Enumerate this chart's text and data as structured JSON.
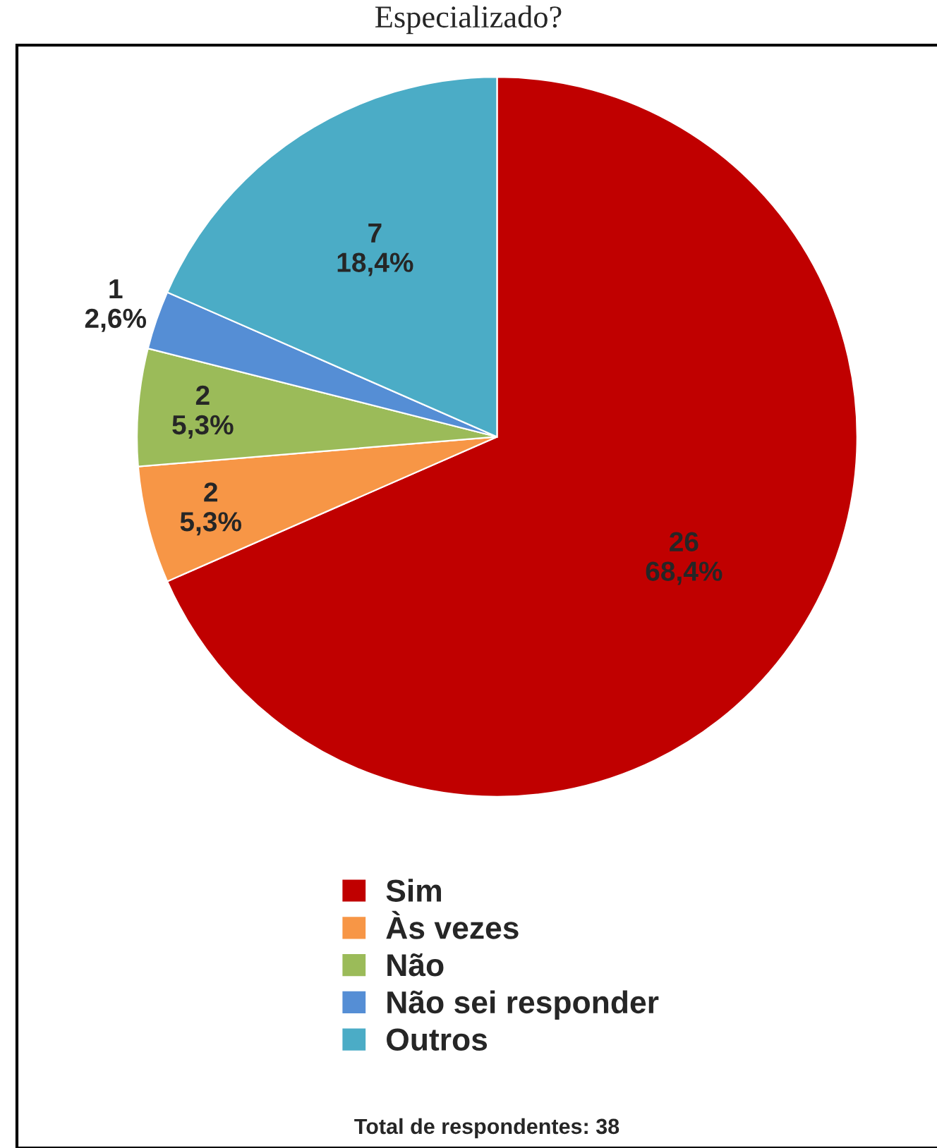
{
  "chart_data": {
    "type": "pie",
    "title": "Especializado?",
    "categories": [
      "Sim",
      "Às vezes",
      "Não",
      "Não sei responder",
      "Outros"
    ],
    "values": [
      26,
      2,
      2,
      1,
      7
    ],
    "colors": [
      "#c00000",
      "#f79646",
      "#9bbb59",
      "#558ed5",
      "#4bacc6"
    ],
    "value_labels": [
      "26\n68,4%",
      "2\n5,3%",
      "2\n5,3%",
      "1\n2,6%",
      "7\n18,4%"
    ],
    "legend": "bottom",
    "annotations": [
      "Total de respondentes: 38"
    ]
  }
}
